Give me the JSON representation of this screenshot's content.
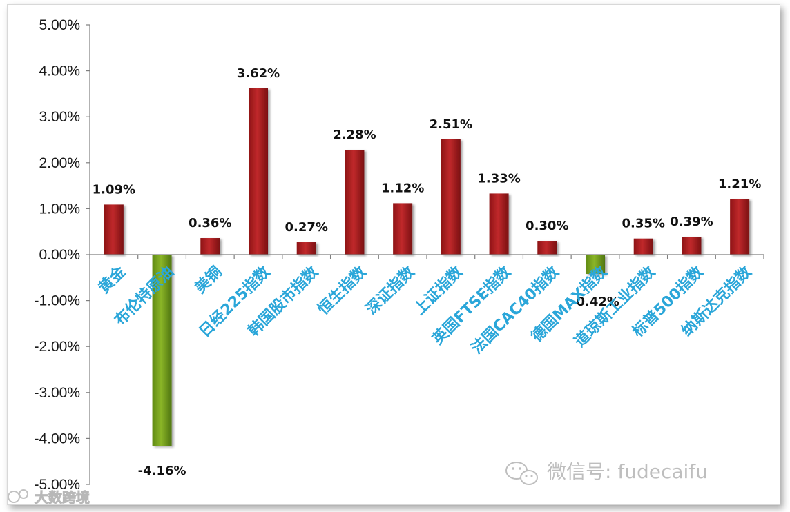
{
  "chart_data": {
    "type": "bar",
    "categories": [
      "黄金",
      "布伦特原油",
      "美铜",
      "日经225指数",
      "韩国股市指数",
      "恒生指数",
      "深证指数",
      "上证指数",
      "英国FTSE指数",
      "法国CAC40指数",
      "德国MAX指数",
      "道琼斯工业指数",
      "标普500指数",
      "纳斯达克指数"
    ],
    "values": [
      1.09,
      -4.16,
      0.36,
      3.62,
      0.27,
      2.28,
      1.12,
      2.51,
      1.33,
      0.3,
      -0.42,
      0.35,
      0.39,
      1.21
    ],
    "data_labels": [
      "1.09%",
      "-4.16%",
      "0.36%",
      "3.62%",
      "0.27%",
      "2.28%",
      "1.12%",
      "2.51%",
      "1.33%",
      "0.30%",
      "-0.42%",
      "0.35%",
      "0.39%",
      "1.21%"
    ],
    "y_ticks": [
      5,
      4,
      3,
      2,
      1,
      0,
      -1,
      -2,
      -3,
      -4,
      -5
    ],
    "y_tick_labels": [
      "5.00%",
      "4.00%",
      "3.00%",
      "2.00%",
      "1.00%",
      "0.00%",
      "-1.00%",
      "-2.00%",
      "-3.00%",
      "-4.00%",
      "-5.00%"
    ],
    "ylim": [
      -5,
      5
    ],
    "grid": false,
    "colors": {
      "positive_bar": "#c0292b",
      "negative_bar": "#8ab528",
      "category_label": "#2aa6d9"
    }
  },
  "watermarks": {
    "wechat": "微信号: fudecaifu",
    "corner": "大数跨境"
  }
}
